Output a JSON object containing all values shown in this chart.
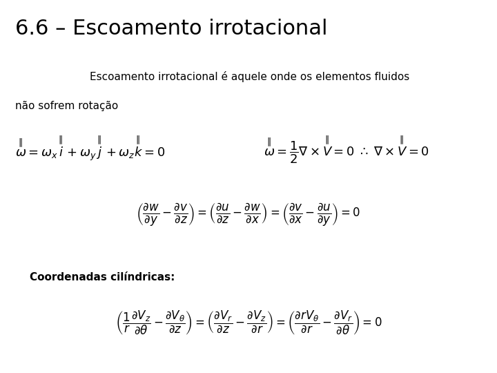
{
  "title": "6.6 – Escoamento irrotacional",
  "subtitle_line1": "Escoamento irrotacional é aquele onde os elementos fluidos",
  "subtitle_line2": "não sofrem rotação",
  "label_cylindrical": "Coordenadas cilíndricas:",
  "bg_color": "#ffffff",
  "text_color": "#000000",
  "title_fontsize": 22,
  "body_fontsize": 11,
  "eq_fontsize": 13,
  "eq_fontsize_small": 12
}
